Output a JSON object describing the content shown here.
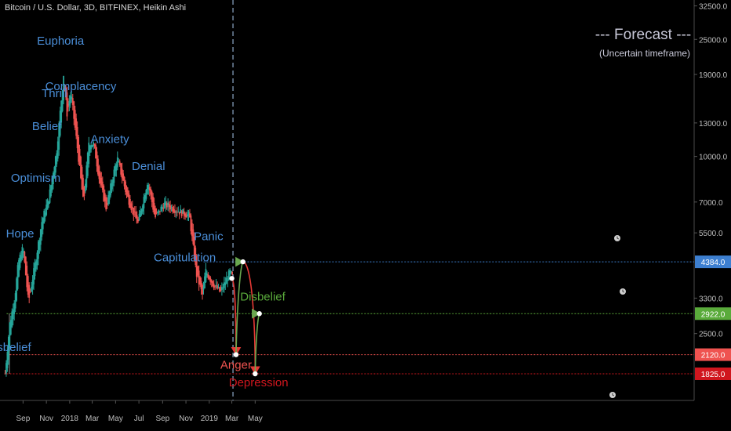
{
  "header": {
    "title": "Bitcoin / U.S. Dollar, 3D, BITFINEX, Heikin Ashi"
  },
  "chart_data": {
    "type": "candlestick",
    "scale": "log",
    "ylim": [
      1650,
      33000
    ],
    "x_tick_labels": [
      "Sep",
      "Nov",
      "2018",
      "Mar",
      "May",
      "Jul",
      "Sep",
      "Nov",
      "2019",
      "Mar",
      "May"
    ],
    "y_tick_labels": [
      {
        "value": 32500,
        "label": "32500.0"
      },
      {
        "value": 25000,
        "label": "25000.0"
      },
      {
        "value": 19000,
        "label": "19000.0"
      },
      {
        "value": 13000,
        "label": "13000.0"
      },
      {
        "value": 10000,
        "label": "10000.0"
      },
      {
        "value": 7000,
        "label": "7000.0"
      },
      {
        "value": 5500,
        "label": "5500.0"
      },
      {
        "value": 3300,
        "label": "3300.0"
      },
      {
        "value": 2500,
        "label": "2500.0"
      }
    ],
    "price_keypoints": [
      [
        "2017-07-16",
        1830
      ],
      [
        "2017-07-28",
        2700
      ],
      [
        "2017-08-10",
        3300
      ],
      [
        "2017-08-20",
        4400
      ],
      [
        "2017-09-01",
        4900
      ],
      [
        "2017-09-15",
        3200
      ],
      [
        "2017-10-01",
        4200
      ],
      [
        "2017-10-20",
        6000
      ],
      [
        "2017-11-08",
        7300
      ],
      [
        "2017-11-28",
        10500
      ],
      [
        "2017-12-16",
        19000
      ],
      [
        "2017-12-25",
        14000
      ],
      [
        "2018-01-04",
        16500
      ],
      [
        "2018-01-20",
        11000
      ],
      [
        "2018-02-06",
        6900
      ],
      [
        "2018-02-20",
        11200
      ],
      [
        "2018-03-05",
        11000
      ],
      [
        "2018-03-20",
        8300
      ],
      [
        "2018-04-06",
        6700
      ],
      [
        "2018-05-05",
        9900
      ],
      [
        "2018-05-30",
        7400
      ],
      [
        "2018-06-28",
        5900
      ],
      [
        "2018-07-24",
        8300
      ],
      [
        "2018-08-12",
        6200
      ],
      [
        "2018-09-05",
        6900
      ],
      [
        "2018-10-15",
        6500
      ],
      [
        "2018-11-10",
        6300
      ],
      [
        "2018-11-28",
        4000
      ],
      [
        "2018-12-15",
        3350
      ],
      [
        "2018-12-22",
        4100
      ],
      [
        "2019-01-10",
        3700
      ],
      [
        "2019-01-30",
        3450
      ],
      [
        "2019-02-24",
        4050
      ],
      [
        "2019-03-02",
        3900
      ]
    ],
    "levels": [
      {
        "label": "4384.0",
        "value": 4384,
        "color": "#3d7fd0",
        "style": "dotted"
      },
      {
        "label": "2922.0",
        "value": 2922,
        "color": "#5aab3b",
        "style": "dotted"
      },
      {
        "label": "2120.0",
        "value": 2120,
        "color": "#ef5350",
        "style": "dotted"
      },
      {
        "label": "1825.0",
        "value": 1825,
        "color": "#d0161e",
        "style": "dotted"
      }
    ],
    "phases": [
      {
        "label": "Disbelief",
        "date": "2017-07-25",
        "value": 2180,
        "color": "#4a8ed8"
      },
      {
        "label": "Hope",
        "date": "2017-08-24",
        "value": 5300,
        "color": "#4a8ed8"
      },
      {
        "label": "Optimism",
        "date": "2017-10-04",
        "value": 8200,
        "color": "#4a8ed8"
      },
      {
        "label": "Belief",
        "date": "2017-11-02",
        "value": 12300,
        "color": "#4a8ed8"
      },
      {
        "label": "Thrill",
        "date": "2017-11-22",
        "value": 15900,
        "color": "#4a8ed8"
      },
      {
        "label": "Euphoria",
        "date": "2017-12-08",
        "value": 24000,
        "color": "#4a8ed8"
      },
      {
        "label": "Complacency",
        "date": "2018-01-30",
        "value": 16800,
        "color": "#4a8ed8"
      },
      {
        "label": "Anxiety",
        "date": "2018-04-16",
        "value": 11100,
        "color": "#4a8ed8"
      },
      {
        "label": "Denial",
        "date": "2018-07-26",
        "value": 9000,
        "color": "#4a8ed8"
      },
      {
        "label": "Capitulation",
        "date": "2018-10-29",
        "value": 4400,
        "color": "#4a8ed8"
      },
      {
        "label": "Panic",
        "date": "2018-12-30",
        "value": 5200,
        "color": "#4a8ed8"
      },
      {
        "label": "Anger",
        "date": "2019-03-12",
        "value": 1900,
        "color": "#ef5350"
      },
      {
        "label": "Depression",
        "date": "2019-05-10",
        "value": 1655,
        "color": "#d0161e"
      },
      {
        "label": "Disbelief",
        "date": "2019-05-21",
        "value": 3240,
        "color": "#5aab3b"
      }
    ],
    "forecast": {
      "title": "--- Forecast ---",
      "subtitle": "(Uncertain timeframe)",
      "start_date": "2019-03-04",
      "path": [
        {
          "date": "2019-03-01",
          "value": 3850
        },
        {
          "date": "2019-03-12",
          "value": 2120
        },
        {
          "date": "2019-03-30",
          "value": 4384
        },
        {
          "date": "2019-05-01",
          "value": 1825
        },
        {
          "date": "2019-05-12",
          "value": 2922
        }
      ]
    },
    "colors": {
      "up": "#26a69a",
      "down": "#ef5350",
      "background": "#000000"
    },
    "grid": false,
    "legend": "none"
  }
}
